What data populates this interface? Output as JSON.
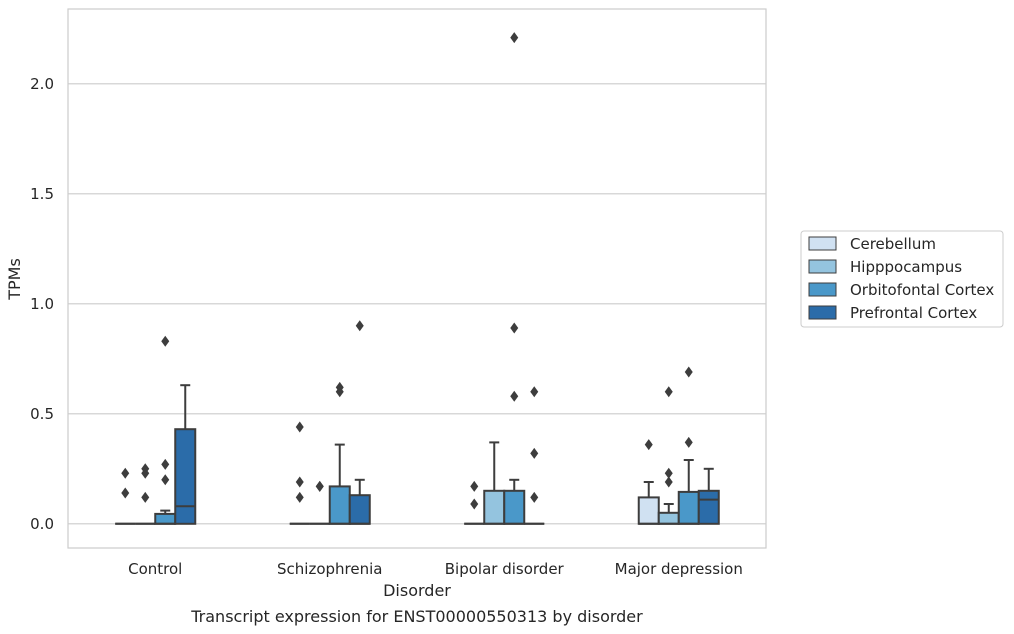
{
  "chart_data": {
    "type": "boxplot",
    "caption": "Transcript expression for ENST00000550313 by disorder",
    "xlabel": "Disorder",
    "ylabel": "TPMs",
    "ylim": [
      -0.11,
      2.34
    ],
    "yticks": [
      0.0,
      0.5,
      1.0,
      1.5,
      2.0
    ],
    "ytick_labels": [
      "0.0",
      "0.5",
      "1.0",
      "1.5",
      "2.0"
    ],
    "grid": true,
    "legend_position": "right",
    "categories": [
      "Control",
      "Schizophrenia",
      "Bipolar disorder",
      "Major depression"
    ],
    "series": [
      {
        "name": "Cerebellum",
        "color": "#d0e1f2",
        "boxes": [
          {
            "q1": 0,
            "median": 0,
            "q3": 0,
            "whisker_low": 0,
            "whisker_high": 0,
            "outliers": [
              0.23,
              0.14
            ]
          },
          {
            "q1": 0,
            "median": 0,
            "q3": 0,
            "whisker_low": 0,
            "whisker_high": 0,
            "outliers": [
              0.44,
              0.19,
              0.12
            ]
          },
          {
            "q1": 0,
            "median": 0,
            "q3": 0,
            "whisker_low": 0,
            "whisker_high": 0,
            "outliers": [
              0.17,
              0.09
            ]
          },
          {
            "q1": 0,
            "median": 0,
            "q3": 0.12,
            "whisker_low": 0,
            "whisker_high": 0.19,
            "outliers": [
              0.36
            ]
          }
        ]
      },
      {
        "name": "Hipppocampus",
        "color": "#94c4df",
        "boxes": [
          {
            "q1": 0,
            "median": 0,
            "q3": 0,
            "whisker_low": 0,
            "whisker_high": 0,
            "outliers": [
              0.25,
              0.23,
              0.12
            ]
          },
          {
            "q1": 0,
            "median": 0,
            "q3": 0,
            "whisker_low": 0,
            "whisker_high": 0,
            "outliers": [
              0.17,
              0.17
            ]
          },
          {
            "q1": 0,
            "median": 0,
            "q3": 0.15,
            "whisker_low": 0,
            "whisker_high": 0.37,
            "outliers": []
          },
          {
            "q1": 0,
            "median": 0,
            "q3": 0.05,
            "whisker_low": 0,
            "whisker_high": 0.09,
            "outliers": [
              0.6,
              0.23,
              0.19
            ]
          }
        ]
      },
      {
        "name": "Orbitofontal Cortex",
        "color": "#4a98c9",
        "boxes": [
          {
            "q1": 0,
            "median": 0,
            "q3": 0.045,
            "whisker_low": 0,
            "whisker_high": 0.06,
            "outliers": [
              0.83,
              0.27,
              0.2
            ]
          },
          {
            "q1": 0,
            "median": 0,
            "q3": 0.17,
            "whisker_low": 0,
            "whisker_high": 0.36,
            "outliers": [
              0.62,
              0.6
            ]
          },
          {
            "q1": 0,
            "median": 0,
            "q3": 0.15,
            "whisker_low": 0,
            "whisker_high": 0.2,
            "outliers": [
              2.21,
              0.89,
              0.58
            ]
          },
          {
            "q1": 0,
            "median": 0,
            "q3": 0.145,
            "whisker_low": 0,
            "whisker_high": 0.29,
            "outliers": [
              0.69,
              0.37
            ]
          }
        ]
      },
      {
        "name": "Prefrontal Cortex",
        "color": "#2b6ca9",
        "boxes": [
          {
            "q1": 0,
            "median": 0.08,
            "q3": 0.43,
            "whisker_low": 0,
            "whisker_high": 0.63,
            "outliers": []
          },
          {
            "q1": 0,
            "median": 0,
            "q3": 0.13,
            "whisker_low": 0,
            "whisker_high": 0.2,
            "outliers": [
              0.9
            ]
          },
          {
            "q1": 0,
            "median": 0,
            "q3": 0,
            "whisker_low": 0,
            "whisker_high": 0,
            "outliers": [
              0.6,
              0.32,
              0.12
            ]
          },
          {
            "q1": 0,
            "median": 0.11,
            "q3": 0.15,
            "whisker_low": 0,
            "whisker_high": 0.25,
            "outliers": []
          }
        ]
      }
    ]
  }
}
